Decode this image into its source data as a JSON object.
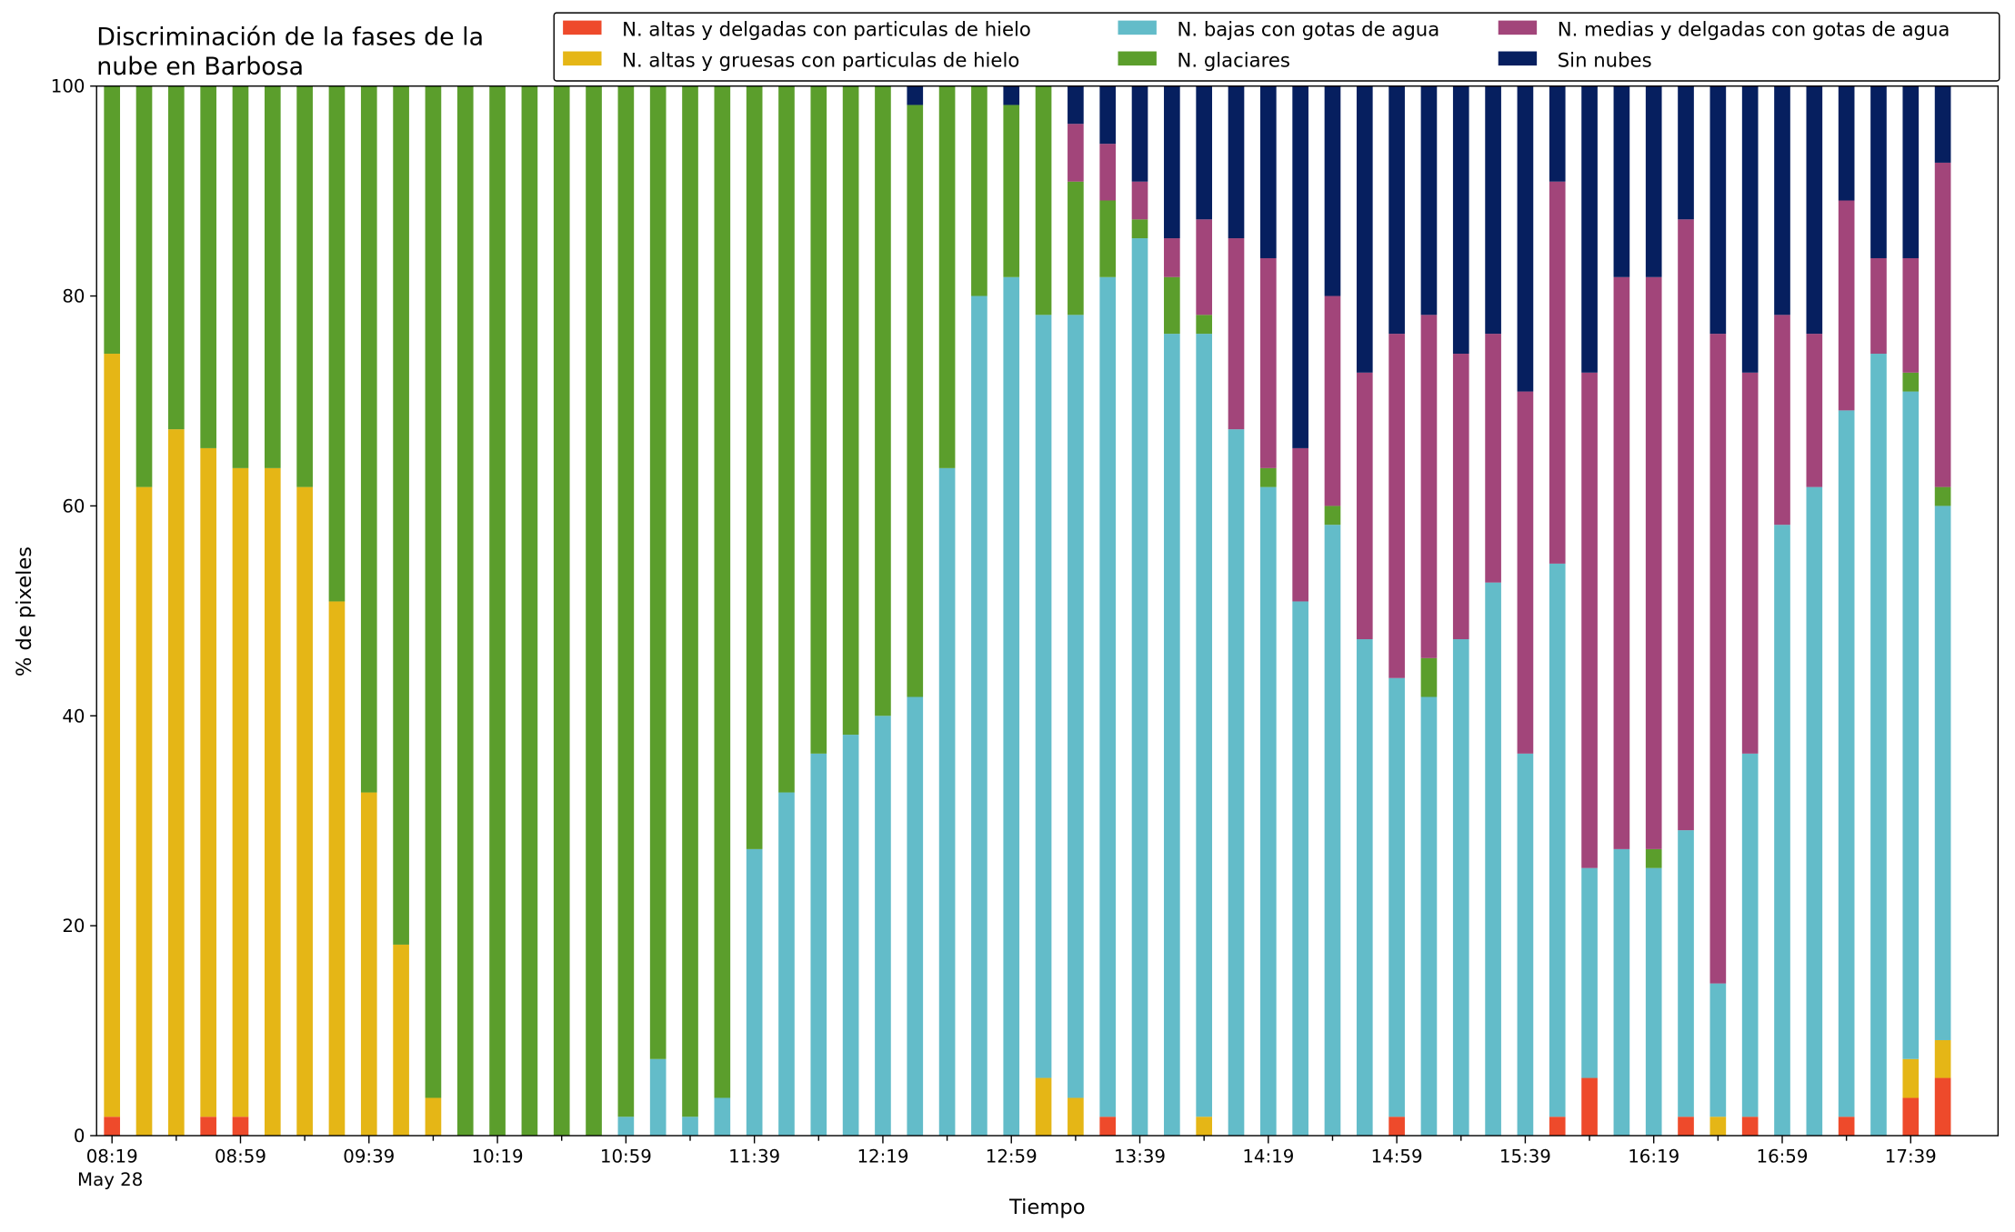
{
  "chart_data": {
    "type": "stacked_bar",
    "title": [
      "Discriminación de la fases de la",
      "nube en Barbosa"
    ],
    "xlabel": "Tiempo",
    "ylabel": "% de pixeles",
    "x_date_label": "May 28",
    "categories": [
      "08:19",
      null,
      null,
      null,
      "08:59",
      null,
      null,
      null,
      "09:39",
      null,
      null,
      null,
      "10:19",
      null,
      null,
      null,
      "10:59",
      null,
      null,
      null,
      "11:39",
      null,
      null,
      null,
      "12:19",
      null,
      null,
      null,
      "12:59",
      null,
      null,
      null,
      "13:39",
      null,
      null,
      null,
      "14:19",
      null,
      null,
      null,
      "14:59",
      null,
      null,
      null,
      "15:39",
      null,
      null,
      null,
      "16:19",
      null,
      null,
      null,
      "16:59",
      null,
      null,
      null,
      "17:39",
      null
    ],
    "ylim": [
      0,
      100
    ],
    "yticks": [
      0,
      20,
      40,
      60,
      80,
      100
    ],
    "legend": "top-right",
    "series": [
      {
        "name": "N. altas y delgadas con particulas de hielo",
        "color": "#ee4a2b",
        "values": [
          1.8,
          0,
          0,
          1.8,
          1.8,
          0,
          0,
          0,
          0,
          0,
          0,
          0,
          0,
          0,
          0,
          0,
          0,
          0,
          0,
          0,
          0,
          0,
          0,
          0,
          0,
          0,
          0,
          0,
          0,
          0,
          0,
          1.8,
          0,
          0,
          0,
          0,
          0,
          0,
          0,
          0,
          1.8,
          0,
          0,
          0,
          0,
          1.8,
          5.5,
          0,
          0,
          1.8,
          0,
          1.8,
          0,
          0,
          1.8,
          0,
          3.6,
          5.5
        ]
      },
      {
        "name": "N. altas y gruesas con particulas de hielo",
        "color": "#e5b616",
        "values": [
          72.7,
          61.8,
          67.3,
          63.7,
          61.8,
          63.6,
          61.8,
          50.9,
          32.7,
          18.2,
          3.6,
          0,
          0,
          0,
          0,
          0,
          0,
          0,
          0,
          0,
          0,
          0,
          0,
          0,
          0,
          0,
          0,
          0,
          0,
          5.5,
          3.6,
          0,
          0,
          0,
          1.8,
          0,
          0,
          0,
          0,
          0,
          0,
          0,
          0,
          0,
          0,
          0,
          0,
          0,
          0,
          0,
          1.8,
          0,
          0,
          0,
          0,
          0,
          3.7,
          3.6
        ]
      },
      {
        "name": "N. bajas con gotas de agua",
        "color": "#63bcc9",
        "values": [
          0,
          0,
          0,
          0,
          0,
          0,
          0,
          0,
          0,
          0,
          0,
          0,
          0,
          0,
          0,
          0,
          1.8,
          7.3,
          1.8,
          3.6,
          27.3,
          32.7,
          36.4,
          38.2,
          40,
          41.8,
          63.6,
          80,
          81.8,
          72.7,
          74.6,
          80,
          85.5,
          76.4,
          74.6,
          67.3,
          61.8,
          50.9,
          58.2,
          47.3,
          41.8,
          41.8,
          47.3,
          52.7,
          36.4,
          52.7,
          20,
          27.3,
          25.5,
          27.3,
          12.7,
          34.6,
          58.2,
          61.8,
          67.3,
          74.5,
          63.6,
          50.9
        ]
      },
      {
        "name": "N. glaciares",
        "color": "#5b9e2c",
        "values": [
          25.5,
          38.2,
          32.7,
          34.5,
          36.4,
          36.4,
          38.2,
          49.1,
          67.3,
          81.8,
          96.4,
          100,
          100,
          100,
          100,
          100,
          98.2,
          92.7,
          98.2,
          96.4,
          72.7,
          67.3,
          63.6,
          61.8,
          60,
          56.4,
          36.4,
          20,
          16.4,
          21.8,
          12.7,
          7.3,
          1.8,
          5.4,
          1.8,
          0,
          1.8,
          0,
          1.8,
          0,
          0,
          3.7,
          0,
          0,
          0,
          0,
          0,
          0,
          1.8,
          0,
          0,
          0,
          0,
          0,
          0,
          0,
          1.8,
          1.8
        ]
      },
      {
        "name": "N. medias y delgadas con gotas de agua",
        "color": "#a2457a",
        "values": [
          0,
          0,
          0,
          0,
          0,
          0,
          0,
          0,
          0,
          0,
          0,
          0,
          0,
          0,
          0,
          0,
          0,
          0,
          0,
          0,
          0,
          0,
          0,
          0,
          0,
          0,
          0,
          0,
          0,
          0,
          5.5,
          5.4,
          3.6,
          3.7,
          9.1,
          18.2,
          20,
          14.6,
          20,
          25.4,
          32.8,
          32.7,
          27.2,
          23.7,
          34.5,
          36.4,
          47.2,
          54.5,
          54.5,
          58.2,
          61.9,
          36.3,
          20,
          14.6,
          20,
          9.1,
          10.9,
          30.9
        ]
      },
      {
        "name": "Sin nubes",
        "color": "#061f5f",
        "values": [
          0,
          0,
          0,
          0,
          0,
          0,
          0,
          0,
          0,
          0,
          0,
          0,
          0,
          0,
          0,
          0,
          0,
          0,
          0,
          0,
          0,
          0,
          0,
          0,
          0,
          1.8,
          0,
          0,
          1.8,
          0,
          3.6,
          5.5,
          9.1,
          14.5,
          12.7,
          14.5,
          16.4,
          34.5,
          20,
          27.3,
          23.6,
          21.8,
          25.5,
          23.6,
          29.1,
          9.1,
          27.3,
          18.2,
          18.2,
          12.7,
          23.6,
          27.3,
          21.8,
          23.6,
          10.9,
          16.4,
          16.4,
          7.3
        ]
      }
    ]
  }
}
